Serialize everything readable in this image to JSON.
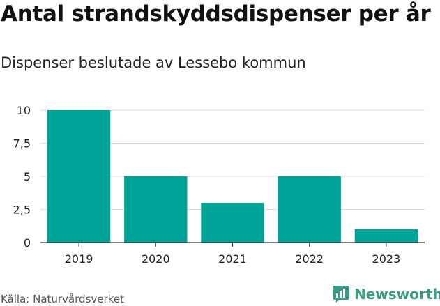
{
  "header": {
    "title": "Antal strandskyddsdispenser per år",
    "subtitle": "Dispenser beslutade av Lessebo kommun"
  },
  "footer": {
    "source": "Källa: Naturvårdsverket",
    "brand": "Newsworthy"
  },
  "colors": {
    "bar": "#00a398",
    "grid": "#dddddd",
    "axis": "#333333",
    "brand": "#3a9c87"
  },
  "chart_data": {
    "type": "bar",
    "title": "Antal strandskyddsdispenser per år",
    "subtitle": "Dispenser beslutade av Lessebo kommun",
    "categories": [
      "2019",
      "2020",
      "2021",
      "2022",
      "2023"
    ],
    "values": [
      10,
      5,
      3,
      5,
      1
    ],
    "xlabel": "",
    "ylabel": "",
    "ylim": [
      0,
      10
    ],
    "yticks": [
      0,
      2.5,
      5,
      7.5,
      10
    ],
    "ytick_labels": [
      "0",
      "2,5",
      "5",
      "7,5",
      "10"
    ],
    "grid": true
  }
}
